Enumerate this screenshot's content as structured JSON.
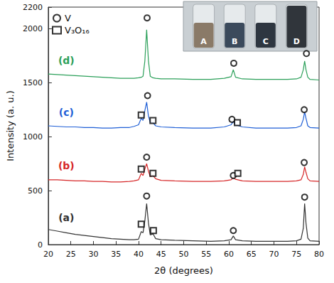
{
  "chart_data": {
    "type": "line",
    "x_label": "2θ (degrees)",
    "y_label": "Intensity (a. u.)",
    "xlim": [
      20,
      80
    ],
    "xticks": [
      20,
      25,
      30,
      35,
      40,
      45,
      50,
      55,
      60,
      65,
      70,
      75,
      80
    ],
    "ylim": [
      0,
      2200
    ],
    "yticks": [
      0,
      500,
      1000,
      1500,
      2000
    ],
    "grid": false,
    "legend": "upper left",
    "x": [
      20,
      22,
      24,
      26,
      28,
      30,
      32,
      34,
      36,
      38,
      39,
      40,
      40.6,
      41,
      41.4,
      41.8,
      42.2,
      42.6,
      43.2,
      43.8,
      45,
      48,
      52,
      56,
      59,
      60.5,
      61,
      61.5,
      63,
      66,
      70,
      73,
      75,
      76,
      76.5,
      76.8,
      77.1,
      77.5,
      78,
      80
    ],
    "series": [
      {
        "name": "(a)",
        "type": "line",
        "color": "#333333",
        "values": [
          140,
          125,
          110,
          95,
          85,
          75,
          65,
          55,
          50,
          45,
          45,
          50,
          120,
          110,
          220,
          380,
          200,
          90,
          100,
          55,
          45,
          40,
          35,
          30,
          35,
          45,
          80,
          45,
          35,
          30,
          30,
          30,
          35,
          50,
          150,
          380,
          200,
          60,
          35,
          30
        ]
      },
      {
        "name": "(b)",
        "type": "line",
        "color": "#d62728",
        "values": [
          600,
          600,
          595,
          590,
          590,
          585,
          585,
          580,
          580,
          585,
          590,
          600,
          660,
          640,
          700,
          750,
          680,
          630,
          640,
          610,
          595,
          590,
          585,
          585,
          590,
          600,
          620,
          605,
          590,
          585,
          585,
          585,
          590,
          600,
          650,
          720,
          670,
          610,
          590,
          585
        ]
      },
      {
        "name": "(c)",
        "type": "line",
        "color": "#1f5fd6",
        "values": [
          1100,
          1095,
          1090,
          1090,
          1085,
          1085,
          1080,
          1080,
          1085,
          1085,
          1095,
          1110,
          1170,
          1150,
          1240,
          1320,
          1190,
          1130,
          1130,
          1100,
          1090,
          1085,
          1080,
          1080,
          1090,
          1110,
          1140,
          1110,
          1090,
          1080,
          1080,
          1080,
          1085,
          1100,
          1160,
          1230,
          1170,
          1100,
          1085,
          1080
        ]
      },
      {
        "name": "(d)",
        "type": "line",
        "color": "#2ca05a",
        "values": [
          1580,
          1575,
          1570,
          1565,
          1560,
          1555,
          1550,
          1545,
          1540,
          1540,
          1540,
          1545,
          1550,
          1560,
          1700,
          1990,
          1700,
          1560,
          1545,
          1540,
          1535,
          1535,
          1530,
          1530,
          1540,
          1555,
          1620,
          1550,
          1535,
          1530,
          1530,
          1530,
          1535,
          1550,
          1620,
          1700,
          1620,
          1550,
          1530,
          1525
        ]
      },
      {
        "name": "V",
        "type": "scatter",
        "marker": "circle",
        "color": "#000000",
        "x": [
          41.8,
          61,
          76.8,
          41.8,
          61,
          76.7,
          42,
          60.7,
          76.7,
          41.9,
          61.1,
          77.2
        ],
        "values": [
          450,
          130,
          440,
          810,
          640,
          760,
          1380,
          1160,
          1250,
          2100,
          1680,
          1770
        ]
      },
      {
        "name": "V₃O₁₆",
        "type": "scatter",
        "marker": "square",
        "color": "#000000",
        "x": [
          40.6,
          43.3,
          40.6,
          43.2,
          62,
          40.6,
          43.2,
          61.9
        ],
        "values": [
          190,
          130,
          700,
          660,
          660,
          1200,
          1150,
          1130
        ]
      }
    ],
    "inset": {
      "labels": [
        "A",
        "B",
        "C",
        "D"
      ]
    }
  }
}
